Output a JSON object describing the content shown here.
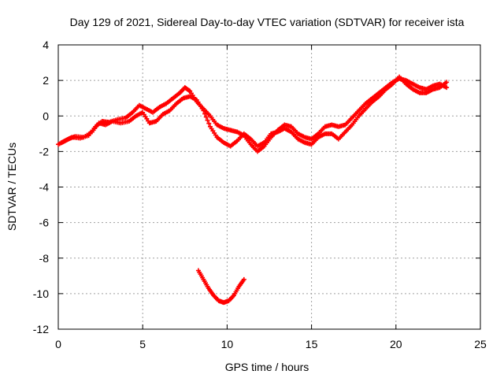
{
  "chart_data": {
    "type": "scatter",
    "title": "Day 129 of 2021, Sidereal Day-to-day VTEC variation (SDTVAR) for receiver ista",
    "xlabel": "GPS time / hours",
    "ylabel": "SDTVAR / TECUs",
    "xlim": [
      0,
      25
    ],
    "ylim": [
      -12,
      4
    ],
    "xticks": [
      0,
      5,
      10,
      15,
      20,
      25
    ],
    "yticks": [
      -12,
      -10,
      -8,
      -6,
      -4,
      -2,
      0,
      2,
      4
    ],
    "xtick_labels": [
      "0",
      "5",
      "10",
      "15",
      "20",
      "25"
    ],
    "ytick_labels": [
      "-12",
      "-10",
      "-8",
      "-6",
      "-4",
      "-2",
      "0",
      "2",
      "4"
    ],
    "grid": true,
    "marker": "plus",
    "series": [
      {
        "name": "main trace A",
        "color": "#ff0000",
        "points": [
          [
            0.0,
            -1.6
          ],
          [
            0.4,
            -1.4
          ],
          [
            0.8,
            -1.2
          ],
          [
            1.3,
            -1.25
          ],
          [
            1.8,
            -1.1
          ],
          [
            2.2,
            -0.6
          ],
          [
            2.6,
            -0.3
          ],
          [
            3.0,
            -0.35
          ],
          [
            3.5,
            -0.2
          ],
          [
            4.0,
            -0.1
          ],
          [
            4.4,
            0.2
          ],
          [
            4.8,
            0.6
          ],
          [
            5.2,
            0.4
          ],
          [
            5.6,
            0.2
          ],
          [
            6.0,
            0.5
          ],
          [
            6.4,
            0.7
          ],
          [
            6.8,
            1.0
          ],
          [
            7.2,
            1.3
          ],
          [
            7.5,
            1.6
          ],
          [
            7.8,
            1.4
          ],
          [
            8.2,
            0.8
          ],
          [
            8.6,
            0.4
          ],
          [
            9.0,
            0.0
          ],
          [
            9.4,
            -0.5
          ],
          [
            9.8,
            -0.7
          ],
          [
            10.2,
            -0.8
          ],
          [
            10.6,
            -0.9
          ],
          [
            11.0,
            -1.1
          ],
          [
            11.4,
            -1.6
          ],
          [
            11.8,
            -2.0
          ],
          [
            12.2,
            -1.7
          ],
          [
            12.6,
            -1.2
          ],
          [
            13.0,
            -0.8
          ],
          [
            13.4,
            -0.5
          ],
          [
            13.8,
            -0.6
          ],
          [
            14.2,
            -1.0
          ],
          [
            14.6,
            -1.2
          ],
          [
            15.0,
            -1.3
          ],
          [
            15.4,
            -1.0
          ],
          [
            15.8,
            -0.6
          ],
          [
            16.2,
            -0.5
          ],
          [
            16.6,
            -0.6
          ],
          [
            17.0,
            -0.5
          ],
          [
            17.4,
            -0.1
          ],
          [
            17.8,
            0.3
          ],
          [
            18.2,
            0.7
          ],
          [
            18.6,
            1.0
          ],
          [
            19.0,
            1.3
          ],
          [
            19.4,
            1.6
          ],
          [
            19.8,
            1.9
          ],
          [
            20.2,
            2.1
          ],
          [
            20.6,
            2.0
          ],
          [
            21.0,
            1.8
          ],
          [
            21.4,
            1.6
          ],
          [
            21.8,
            1.5
          ],
          [
            22.2,
            1.7
          ],
          [
            22.6,
            1.8
          ],
          [
            23.0,
            1.6
          ]
        ]
      },
      {
        "name": "main trace B",
        "color": "#ff0000",
        "points": [
          [
            0.2,
            -1.5
          ],
          [
            0.6,
            -1.3
          ],
          [
            1.0,
            -1.15
          ],
          [
            1.5,
            -1.2
          ],
          [
            2.0,
            -0.9
          ],
          [
            2.4,
            -0.4
          ],
          [
            2.8,
            -0.5
          ],
          [
            3.2,
            -0.3
          ],
          [
            3.7,
            -0.4
          ],
          [
            4.2,
            -0.3
          ],
          [
            4.6,
            0.0
          ],
          [
            5.0,
            0.2
          ],
          [
            5.4,
            -0.4
          ],
          [
            5.8,
            -0.3
          ],
          [
            6.2,
            0.1
          ],
          [
            6.6,
            0.3
          ],
          [
            7.0,
            0.7
          ],
          [
            7.4,
            1.0
          ],
          [
            7.8,
            1.1
          ],
          [
            8.2,
            0.9
          ],
          [
            8.6,
            0.3
          ],
          [
            9.0,
            -0.6
          ],
          [
            9.4,
            -1.2
          ],
          [
            9.8,
            -1.5
          ],
          [
            10.2,
            -1.7
          ],
          [
            10.6,
            -1.4
          ],
          [
            11.0,
            -1.0
          ],
          [
            11.4,
            -1.3
          ],
          [
            11.8,
            -1.7
          ],
          [
            12.2,
            -1.5
          ],
          [
            12.6,
            -1.0
          ],
          [
            13.0,
            -0.9
          ],
          [
            13.4,
            -0.7
          ],
          [
            13.8,
            -0.9
          ],
          [
            14.2,
            -1.3
          ],
          [
            14.6,
            -1.5
          ],
          [
            15.0,
            -1.6
          ],
          [
            15.4,
            -1.2
          ],
          [
            15.8,
            -1.0
          ],
          [
            16.2,
            -1.0
          ],
          [
            16.6,
            -1.3
          ],
          [
            17.0,
            -0.9
          ],
          [
            17.4,
            -0.5
          ],
          [
            17.8,
            0.0
          ],
          [
            18.2,
            0.4
          ],
          [
            18.6,
            0.8
          ],
          [
            19.0,
            1.1
          ],
          [
            19.4,
            1.5
          ],
          [
            19.8,
            1.8
          ],
          [
            20.2,
            2.2
          ],
          [
            20.6,
            1.8
          ],
          [
            21.0,
            1.5
          ],
          [
            21.4,
            1.3
          ],
          [
            21.8,
            1.3
          ],
          [
            22.2,
            1.5
          ],
          [
            22.6,
            1.6
          ],
          [
            23.0,
            1.9
          ]
        ]
      },
      {
        "name": "isolated arc",
        "color": "#ff0000",
        "points": [
          [
            8.3,
            -8.7
          ],
          [
            8.6,
            -9.2
          ],
          [
            8.9,
            -9.7
          ],
          [
            9.2,
            -10.1
          ],
          [
            9.5,
            -10.4
          ],
          [
            9.8,
            -10.5
          ],
          [
            10.1,
            -10.4
          ],
          [
            10.4,
            -10.1
          ],
          [
            10.7,
            -9.6
          ],
          [
            11.0,
            -9.2
          ]
        ]
      }
    ]
  }
}
